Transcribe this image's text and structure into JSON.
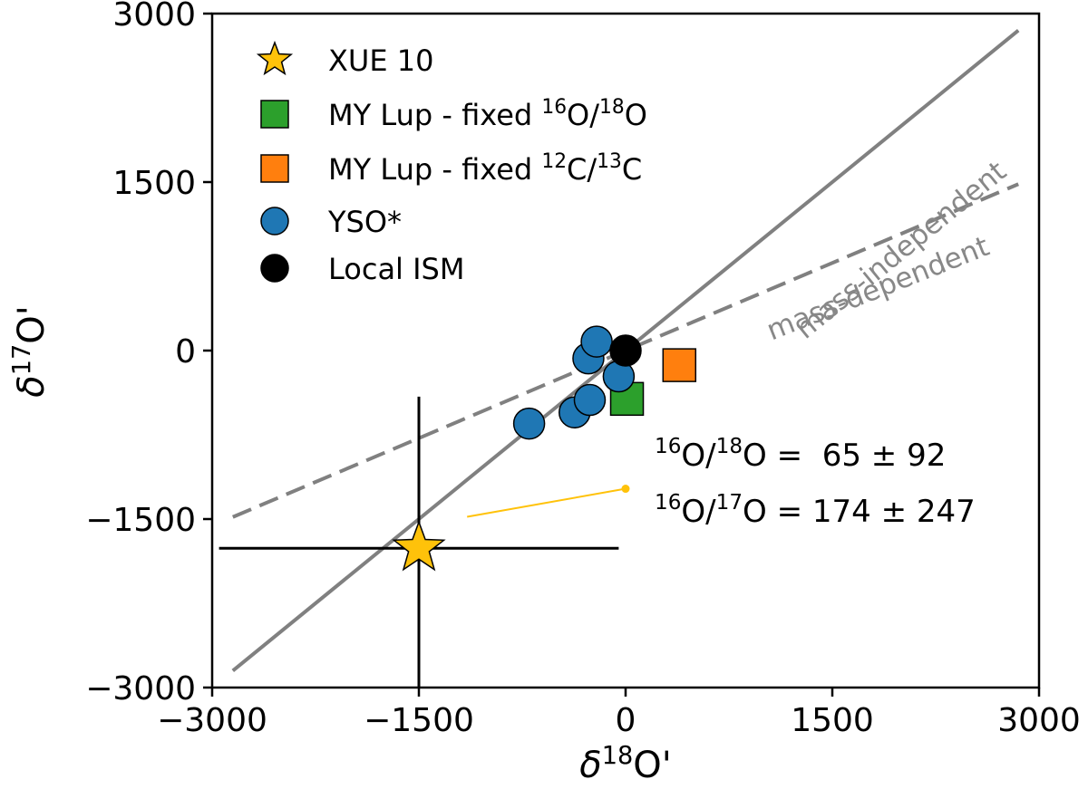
{
  "chart_data": {
    "type": "scatter",
    "title": "",
    "xlabel": "δ18O'",
    "ylabel": "δ17O'",
    "xlim": [
      -3000,
      3000
    ],
    "ylim": [
      -3000,
      3000
    ],
    "xticks": [
      -3000,
      -1500,
      0,
      1500,
      3000
    ],
    "yticks": [
      -3000,
      -1500,
      0,
      1500,
      3000
    ],
    "xtick_labels": [
      "−3000",
      "−1500",
      "0",
      "1500",
      "3000"
    ],
    "ytick_labels": [
      "−3000",
      "−1500",
      "0",
      "1500",
      "3000"
    ],
    "legend_position": "top-left",
    "series": [
      {
        "name": "XUE 10",
        "marker": "star",
        "color": "#FFC20A",
        "points": [
          {
            "x": -1500,
            "y": -1760,
            "xerr": [
              1450,
              1450
            ],
            "yerr": [
              1350,
              1350
            ]
          }
        ]
      },
      {
        "name": "MY Lup - fixed 16O/18O",
        "legend_main": "MY Lup - fixed ",
        "legend_sup1": "16",
        "legend_mid": "O/",
        "legend_sup2": "18",
        "legend_end": "O",
        "marker": "square",
        "color": "#2CA02C",
        "points": [
          {
            "x": 10,
            "y": -430
          }
        ]
      },
      {
        "name": "MY Lup - fixed 12C/13C",
        "legend_main": "MY Lup - fixed ",
        "legend_sup1": "12",
        "legend_mid": "C/",
        "legend_sup2": "13",
        "legend_end": "C",
        "marker": "square",
        "color": "#FF7F0E",
        "points": [
          {
            "x": 390,
            "y": -130
          }
        ]
      },
      {
        "name": "YSO*",
        "marker": "circle",
        "color": "#1F77B4",
        "points": [
          {
            "x": -700,
            "y": -650
          },
          {
            "x": -370,
            "y": -550
          },
          {
            "x": -260,
            "y": -440
          },
          {
            "x": -270,
            "y": -70
          },
          {
            "x": -210,
            "y": 80
          },
          {
            "x": -50,
            "y": -230
          }
        ]
      },
      {
        "name": "Local ISM",
        "marker": "circle",
        "color": "#000000",
        "points": [
          {
            "x": 0,
            "y": 0
          }
        ]
      }
    ],
    "reference_lines": [
      {
        "name": "mass-independent",
        "style": "solid",
        "color": "#808080",
        "slope": 1.0,
        "x_range": [
          -2850,
          2850
        ],
        "label": "mass-independent"
      },
      {
        "name": "mass-dependent",
        "style": "dashed",
        "color": "#808080",
        "slope": 0.52,
        "x_range": [
          -2850,
          2850
        ],
        "label": "mass-dependent"
      }
    ],
    "annotation": {
      "line1": {
        "sup_a": "16",
        "mid_a": "O/",
        "sup_b": "18",
        "end": "O =  65 ± 92"
      },
      "line2": {
        "sup_a": "16",
        "mid_a": "O/",
        "sup_b": "17",
        "end": "O = 174 ± 247"
      },
      "pointer": {
        "color": "#FFC20A",
        "from": [
          -1150,
          -1480
        ],
        "to": [
          0,
          -1230
        ]
      }
    }
  }
}
